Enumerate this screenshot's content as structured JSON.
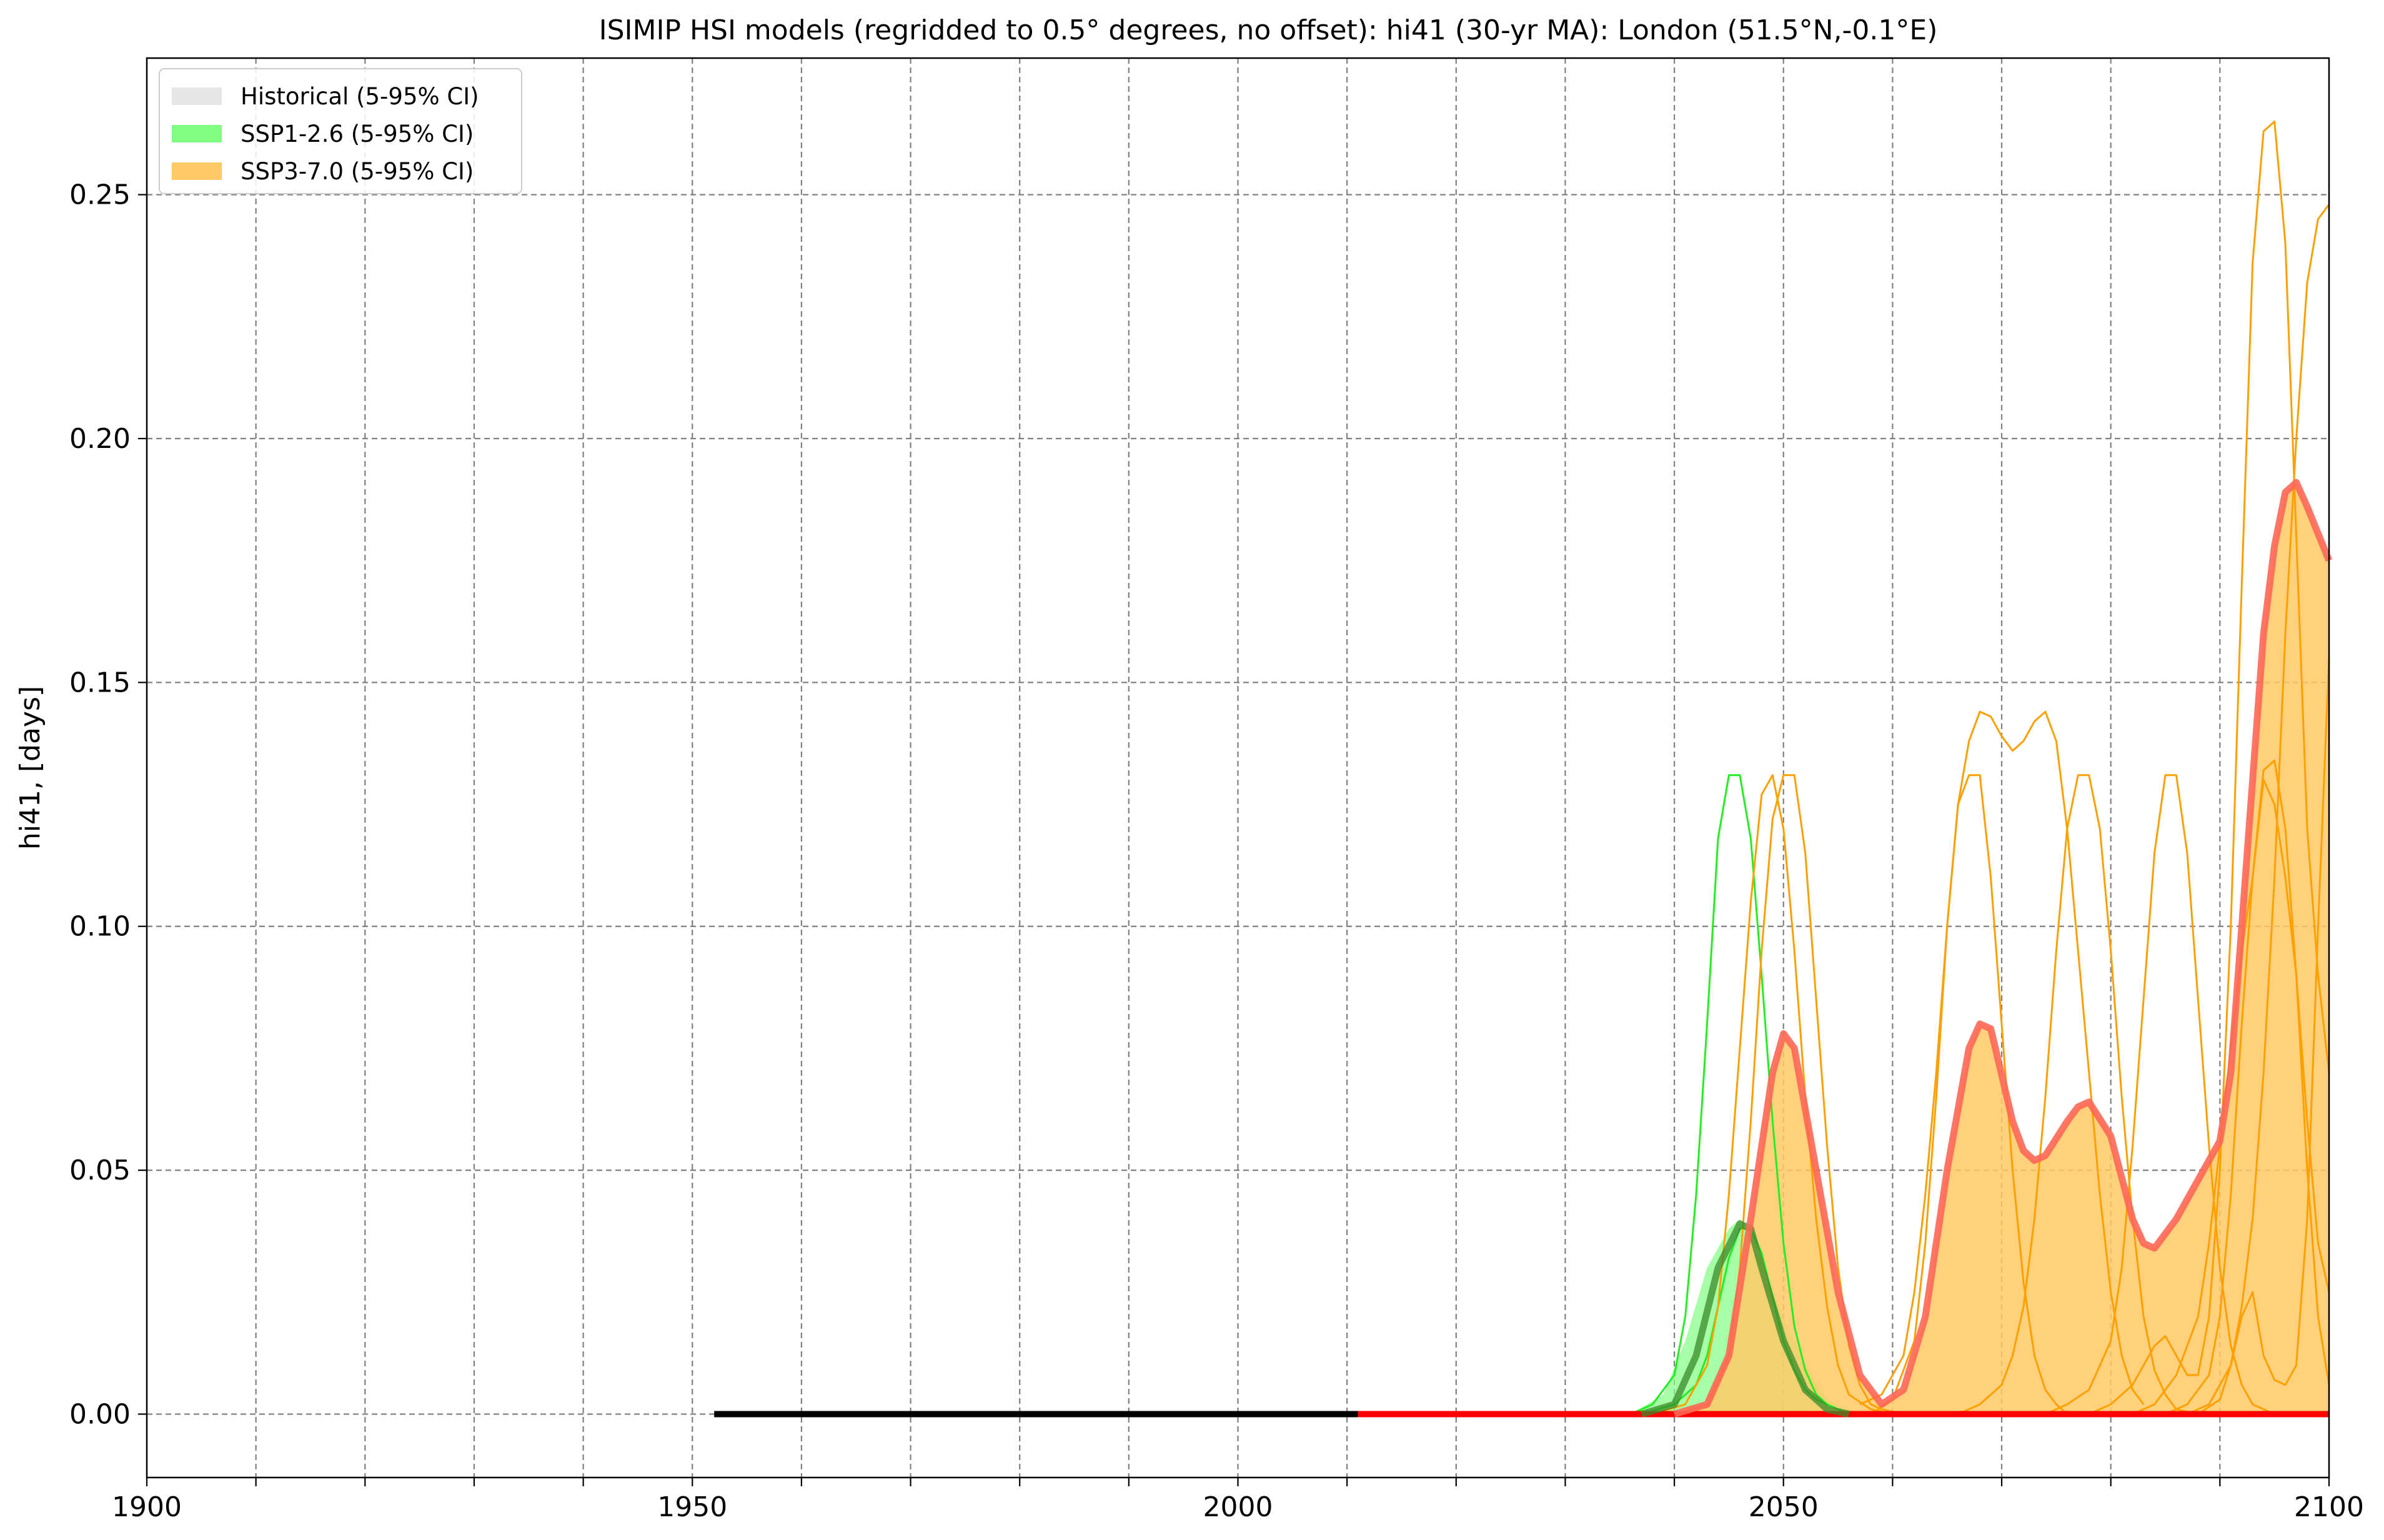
{
  "chart_data": {
    "type": "line",
    "title": "ISIMIP HSI models (regridded to 0.5° degrees, no offset): hi41 (30-yr MA): London (51.5°N,-0.1°E)",
    "xlabel": "",
    "ylabel": "hi41, [days]",
    "xlim": [
      1900,
      2100
    ],
    "ylim": [
      -0.013,
      0.278
    ],
    "grid": true,
    "legend_position": "top-left",
    "x_ticks": [
      1900,
      1950,
      2000,
      2050,
      2100
    ],
    "x_minor_ticks": [
      1910,
      1920,
      1930,
      1940,
      1960,
      1970,
      1980,
      1990,
      2010,
      2020,
      2030,
      2040,
      2060,
      2070,
      2080,
      2090
    ],
    "y_ticks": [
      0.0,
      0.05,
      0.1,
      0.15,
      0.2,
      0.25
    ],
    "x_tick_labels": [
      "1900",
      "1950",
      "2000",
      "2050",
      "2100"
    ],
    "y_tick_labels": [
      "0.00",
      "0.05",
      "0.10",
      "0.15",
      "0.20",
      "0.25"
    ],
    "legend": [
      {
        "label": "Historical (5-95% CI)",
        "color": "#e6e6e6"
      },
      {
        "label": "SSP1-2.6 (5-95% CI)",
        "color": "#80ff80"
      },
      {
        "label": "SSP3-7.0 (5-95% CI)",
        "color": "#ffc966"
      }
    ],
    "series": [
      {
        "role": "historical-median",
        "color": "#000000",
        "x": [
          1952,
          2011
        ],
        "y": [
          0,
          0
        ]
      },
      {
        "role": "ssp370-zero-line",
        "color": "#ff0000",
        "x": [
          2011,
          2100
        ],
        "y": [
          0,
          0
        ]
      },
      {
        "role": "ssp126-median",
        "color": "#3a8a2a",
        "x": [
          2037,
          2040,
          2042,
          2044,
          2046,
          2047,
          2048,
          2050,
          2052,
          2054,
          2056
        ],
        "y": [
          0,
          0.002,
          0.012,
          0.03,
          0.039,
          0.038,
          0.03,
          0.015,
          0.005,
          0.001,
          0
        ]
      },
      {
        "role": "ssp126-band",
        "color": "#80ff80",
        "x": [
          2036,
          2039,
          2041,
          2043,
          2045,
          2046,
          2047,
          2048,
          2050,
          2052,
          2054,
          2056,
          2058
        ],
        "upper": [
          0,
          0.004,
          0.015,
          0.03,
          0.038,
          0.04,
          0.038,
          0.032,
          0.02,
          0.01,
          0.003,
          0.001,
          0
        ],
        "lower": [
          0,
          0,
          0,
          0,
          0,
          0,
          0,
          0,
          0,
          0,
          0,
          0,
          0
        ]
      },
      {
        "role": "ssp370-median",
        "color": "#ff6655",
        "x": [
          2040,
          2043,
          2045,
          2047,
          2049,
          2050,
          2051,
          2053,
          2055,
          2057,
          2059,
          2061,
          2063,
          2065,
          2067,
          2068,
          2069,
          2071,
          2072,
          2073,
          2074,
          2076,
          2077,
          2078,
          2080,
          2082,
          2083,
          2084,
          2086,
          2088,
          2090,
          2091,
          2092,
          2093,
          2094,
          2095,
          2096,
          2097,
          2098,
          2100
        ],
        "y": [
          0,
          0.002,
          0.012,
          0.04,
          0.07,
          0.078,
          0.075,
          0.05,
          0.025,
          0.008,
          0.002,
          0.005,
          0.02,
          0.05,
          0.075,
          0.08,
          0.079,
          0.06,
          0.054,
          0.052,
          0.053,
          0.06,
          0.063,
          0.064,
          0.057,
          0.04,
          0.035,
          0.034,
          0.04,
          0.048,
          0.056,
          0.07,
          0.1,
          0.13,
          0.16,
          0.178,
          0.189,
          0.191,
          0.186,
          0.175
        ]
      },
      {
        "role": "ssp370-band",
        "color": "#ffc966",
        "x": [
          2040,
          2043,
          2045,
          2047,
          2049,
          2050,
          2051,
          2053,
          2055,
          2057,
          2059,
          2061,
          2063,
          2065,
          2067,
          2068,
          2069,
          2071,
          2072,
          2073,
          2074,
          2076,
          2077,
          2078,
          2080,
          2082,
          2083,
          2084,
          2086,
          2088,
          2090,
          2091,
          2092,
          2093,
          2094,
          2095,
          2096,
          2097,
          2098,
          2100
        ],
        "upper": [
          0,
          0.002,
          0.012,
          0.04,
          0.07,
          0.078,
          0.075,
          0.05,
          0.025,
          0.008,
          0.002,
          0.005,
          0.02,
          0.05,
          0.075,
          0.08,
          0.079,
          0.06,
          0.054,
          0.052,
          0.053,
          0.06,
          0.063,
          0.064,
          0.057,
          0.04,
          0.035,
          0.034,
          0.04,
          0.048,
          0.056,
          0.07,
          0.1,
          0.13,
          0.16,
          0.178,
          0.189,
          0.191,
          0.186,
          0.175
        ],
        "lower": [
          0,
          0,
          0,
          0,
          0,
          0,
          0,
          0,
          0,
          0,
          0,
          0,
          0,
          0,
          0,
          0,
          0,
          0,
          0,
          0,
          0,
          0,
          0,
          0,
          0,
          0,
          0,
          0,
          0,
          0,
          0,
          0,
          0,
          0,
          0,
          0,
          0,
          0,
          0,
          0
        ]
      },
      {
        "role": "ssp126-model",
        "color": "#22ee22",
        "x": [
          2036,
          2038,
          2040,
          2041,
          2042,
          2043,
          2044,
          2045,
          2046,
          2047,
          2048,
          2049,
          2050,
          2051,
          2052,
          2053,
          2054,
          2056,
          2058
        ],
        "y": [
          0,
          0.002,
          0.008,
          0.02,
          0.045,
          0.08,
          0.118,
          0.131,
          0.131,
          0.118,
          0.09,
          0.06,
          0.035,
          0.018,
          0.009,
          0.004,
          0.002,
          0,
          0
        ]
      },
      {
        "role": "ssp126-model",
        "color": "#22ee22",
        "x": [
          2037,
          2040,
          2042,
          2043,
          2044,
          2045,
          2046,
          2047,
          2048,
          2049,
          2050,
          2051,
          2052,
          2053,
          2054,
          2055,
          2056,
          2058
        ],
        "y": [
          0,
          0.002,
          0.006,
          0.012,
          0.022,
          0.032,
          0.038,
          0.038,
          0.033,
          0.024,
          0.015,
          0.009,
          0.005,
          0.003,
          0.002,
          0.001,
          0,
          0
        ]
      },
      {
        "role": "ssp370-model",
        "color": "#ffa000",
        "x": [
          2038,
          2041,
          2043,
          2044,
          2045,
          2046,
          2047,
          2048,
          2049,
          2050,
          2051,
          2052,
          2053,
          2054,
          2055,
          2056,
          2058,
          2060
        ],
        "y": [
          0,
          0.002,
          0.01,
          0.022,
          0.045,
          0.075,
          0.105,
          0.127,
          0.131,
          0.12,
          0.095,
          0.065,
          0.04,
          0.022,
          0.01,
          0.004,
          0.001,
          0
        ]
      },
      {
        "role": "ssp370-model",
        "color": "#ffa000",
        "x": [
          2040,
          2043,
          2045,
          2046,
          2047,
          2048,
          2049,
          2050,
          2051,
          2052,
          2053,
          2054,
          2055,
          2056,
          2057,
          2058,
          2059,
          2061
        ],
        "y": [
          0,
          0.002,
          0.012,
          0.03,
          0.06,
          0.095,
          0.122,
          0.131,
          0.131,
          0.115,
          0.085,
          0.055,
          0.03,
          0.014,
          0.006,
          0.002,
          0.001,
          0
        ]
      },
      {
        "role": "ssp370-model",
        "color": "#ffa000",
        "x": [
          2057,
          2059,
          2061,
          2062,
          2063,
          2064,
          2065,
          2066,
          2067,
          2068,
          2069,
          2070,
          2071,
          2072,
          2073,
          2074,
          2075,
          2076,
          2077,
          2078,
          2079,
          2080,
          2081,
          2082,
          2083
        ],
        "y": [
          0.002,
          0.004,
          0.012,
          0.025,
          0.045,
          0.07,
          0.1,
          0.125,
          0.138,
          0.144,
          0.143,
          0.139,
          0.136,
          0.138,
          0.142,
          0.144,
          0.138,
          0.12,
          0.095,
          0.07,
          0.045,
          0.025,
          0.012,
          0.005,
          0.002
        ]
      },
      {
        "role": "ssp370-model",
        "color": "#ffa000",
        "x": [
          2058,
          2060,
          2062,
          2063,
          2064,
          2065,
          2066,
          2067,
          2068,
          2069,
          2070,
          2071,
          2072,
          2073,
          2074,
          2075,
          2076
        ],
        "y": [
          0,
          0.003,
          0.015,
          0.035,
          0.065,
          0.1,
          0.125,
          0.131,
          0.131,
          0.11,
          0.08,
          0.05,
          0.027,
          0.012,
          0.005,
          0.002,
          0
        ]
      },
      {
        "role": "ssp370-model",
        "color": "#ffa000",
        "x": [
          2066,
          2068,
          2070,
          2071,
          2072,
          2073,
          2074,
          2075,
          2076,
          2077,
          2078,
          2079,
          2080,
          2081,
          2082,
          2083,
          2084,
          2085,
          2086,
          2088
        ],
        "y": [
          0,
          0.002,
          0.006,
          0.012,
          0.022,
          0.04,
          0.065,
          0.095,
          0.12,
          0.131,
          0.131,
          0.12,
          0.095,
          0.065,
          0.04,
          0.02,
          0.009,
          0.004,
          0.001,
          0
        ]
      },
      {
        "role": "ssp370-model",
        "color": "#ffa000",
        "x": [
          2074,
          2076,
          2078,
          2080,
          2081,
          2082,
          2083,
          2084,
          2085,
          2086,
          2087,
          2088,
          2089,
          2090,
          2091,
          2092,
          2093,
          2094,
          2095,
          2096,
          2097
        ],
        "y": [
          0,
          0.002,
          0.005,
          0.015,
          0.03,
          0.055,
          0.085,
          0.115,
          0.131,
          0.131,
          0.115,
          0.085,
          0.055,
          0.03,
          0.014,
          0.006,
          0.002,
          0.001,
          0,
          0,
          0
        ]
      },
      {
        "role": "ssp370-model",
        "color": "#ffa000",
        "x": [
          2078,
          2080,
          2082,
          2083,
          2084,
          2085,
          2086,
          2087,
          2088,
          2089,
          2090,
          2091,
          2092,
          2093,
          2094,
          2095,
          2096,
          2097,
          2098,
          2099,
          2100
        ],
        "y": [
          0,
          0.002,
          0.006,
          0.01,
          0.014,
          0.016,
          0.012,
          0.008,
          0.008,
          0.02,
          0.05,
          0.1,
          0.17,
          0.236,
          0.263,
          0.265,
          0.24,
          0.18,
          0.12,
          0.09,
          0.07
        ]
      },
      {
        "role": "ssp370-model",
        "color": "#ffa000",
        "x": [
          2082,
          2084,
          2086,
          2088,
          2089,
          2090,
          2091,
          2092,
          2093,
          2094,
          2095,
          2096,
          2097,
          2098,
          2099,
          2100
        ],
        "y": [
          0,
          0.002,
          0.008,
          0.02,
          0.035,
          0.055,
          0.075,
          0.095,
          0.11,
          0.132,
          0.134,
          0.12,
          0.09,
          0.05,
          0.02,
          0.006
        ]
      },
      {
        "role": "ssp370-model",
        "color": "#ffa000",
        "x": [
          2085,
          2087,
          2089,
          2090,
          2091,
          2092,
          2093,
          2094,
          2095,
          2096,
          2097,
          2098,
          2099,
          2100
        ],
        "y": [
          0,
          0.002,
          0.008,
          0.02,
          0.045,
          0.08,
          0.11,
          0.13,
          0.125,
          0.11,
          0.09,
          0.06,
          0.035,
          0.025
        ]
      },
      {
        "role": "ssp370-model",
        "color": "#ffa000",
        "x": [
          2087,
          2089,
          2091,
          2092,
          2093,
          2094,
          2095,
          2096,
          2097,
          2098,
          2099,
          2100
        ],
        "y": [
          0,
          0.002,
          0.01,
          0.02,
          0.025,
          0.012,
          0.007,
          0.006,
          0.01,
          0.04,
          0.1,
          0.155
        ]
      },
      {
        "role": "ssp370-model",
        "color": "#ffa000",
        "x": [
          2088,
          2090,
          2091,
          2092,
          2093,
          2094,
          2095,
          2096,
          2097,
          2098,
          2099,
          2100
        ],
        "y": [
          0,
          0.003,
          0.01,
          0.022,
          0.04,
          0.07,
          0.11,
          0.16,
          0.2,
          0.232,
          0.245,
          0.248
        ]
      }
    ]
  }
}
